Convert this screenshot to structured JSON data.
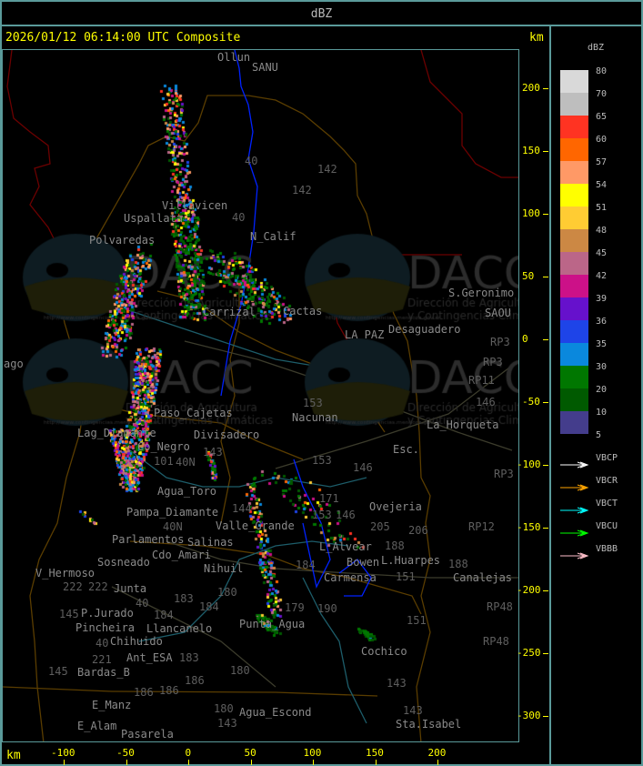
{
  "header": {
    "title": "dBZ"
  },
  "map": {
    "title": "2026/01/12 06:14:00 UTC Composite",
    "unit_label_top": "km",
    "unit_label_bottom": "km",
    "y_ticks": [
      "200",
      "150",
      "100",
      "50",
      "0",
      "-50",
      "-100",
      "-150",
      "-200",
      "-250",
      "-300"
    ],
    "x_ticks": [
      "-100",
      "-50",
      "0",
      "50",
      "100",
      "150",
      "200"
    ],
    "places": [
      "Ollun",
      "SANU",
      "Villavicen",
      "Uspallata",
      "Polvaredas",
      "N_Calif",
      "Carrizal",
      "Cactas",
      "LA PAZ",
      "Desaguadero",
      "S.Geronimo",
      "SAOU",
      "ago",
      "Paso_Cajetas",
      "Lag_Diamante",
      "Co_Negro",
      "Divisadero",
      "Nacunan",
      "La_Horqueta",
      "Esc.",
      "Agua_Toro",
      "Pampa_Diamante",
      "Valle_Grande",
      "Salinas",
      "Cdo_Amari",
      "Parlamentos",
      "Sosneado",
      "Nihuil",
      "V_Hermoso",
      "Junta",
      "P.Jurado",
      "Pincheira",
      "Llancanelo",
      "Chihuido",
      "Ant_ESA",
      "Bardas_B",
      "E_Manz",
      "E_Alam",
      "Pasarela",
      "Punta_Agua",
      "Agua_Escond",
      "L_Alvear",
      "Bowen",
      "Carmensa",
      "L.Huarpes",
      "Canalejas",
      "Ovejeria",
      "Cochico",
      "Sta.Isabel"
    ],
    "routes": [
      "40",
      "40",
      "142",
      "142",
      "153",
      "153",
      "153",
      "146",
      "146",
      "146",
      "RP3",
      "RP3",
      "RP11",
      "RP3",
      "RP12",
      "RP48",
      "RP48",
      "101",
      "40N",
      "40N",
      "143",
      "144",
      "171",
      "205",
      "206",
      "188",
      "188",
      "151",
      "151",
      "184",
      "184",
      "184",
      "180",
      "180",
      "180",
      "183",
      "183",
      "186",
      "186",
      "186",
      "221",
      "222",
      "222",
      "145",
      "145",
      "190",
      "179",
      "143",
      "143",
      "143",
      "40",
      "40"
    ],
    "watermark": {
      "logo_text": "DACC",
      "line1": "Dirección de Agricultura",
      "line2": "y Contingencias Climáticas",
      "url": "http://www.contingencias.mendoza.gov.ar"
    }
  },
  "legend": {
    "title": "dBZ",
    "scale": [
      {
        "label": "80",
        "color": "#d9d9d9"
      },
      {
        "label": "70",
        "color": "#bebebe"
      },
      {
        "label": "65",
        "color": "#ff3322"
      },
      {
        "label": "60",
        "color": "#ff6600"
      },
      {
        "label": "57",
        "color": "#ff9966"
      },
      {
        "label": "54",
        "color": "#ffff00"
      },
      {
        "label": "51",
        "color": "#ffcc33"
      },
      {
        "label": "48",
        "color": "#cc8844"
      },
      {
        "label": "45",
        "color": "#bb6688"
      },
      {
        "label": "42",
        "color": "#cc1188"
      },
      {
        "label": "39",
        "color": "#6611cc"
      },
      {
        "label": "36",
        "color": "#1e44e8"
      },
      {
        "label": "35",
        "color": "#0a88dd"
      },
      {
        "label": "30",
        "color": "#007700"
      },
      {
        "label": "20",
        "color": "#005a00"
      },
      {
        "label": "10",
        "color": "#443d8c"
      },
      {
        "label": "5",
        "color": null
      }
    ],
    "radars": [
      {
        "label": "VBCP",
        "color": "#ffffff"
      },
      {
        "label": "VBCR",
        "color": "#ffa500"
      },
      {
        "label": "VBCT",
        "color": "#00ffff"
      },
      {
        "label": "VBCU",
        "color": "#00ff00"
      },
      {
        "label": "VBBB",
        "color": "#ffc0cb"
      }
    ]
  }
}
